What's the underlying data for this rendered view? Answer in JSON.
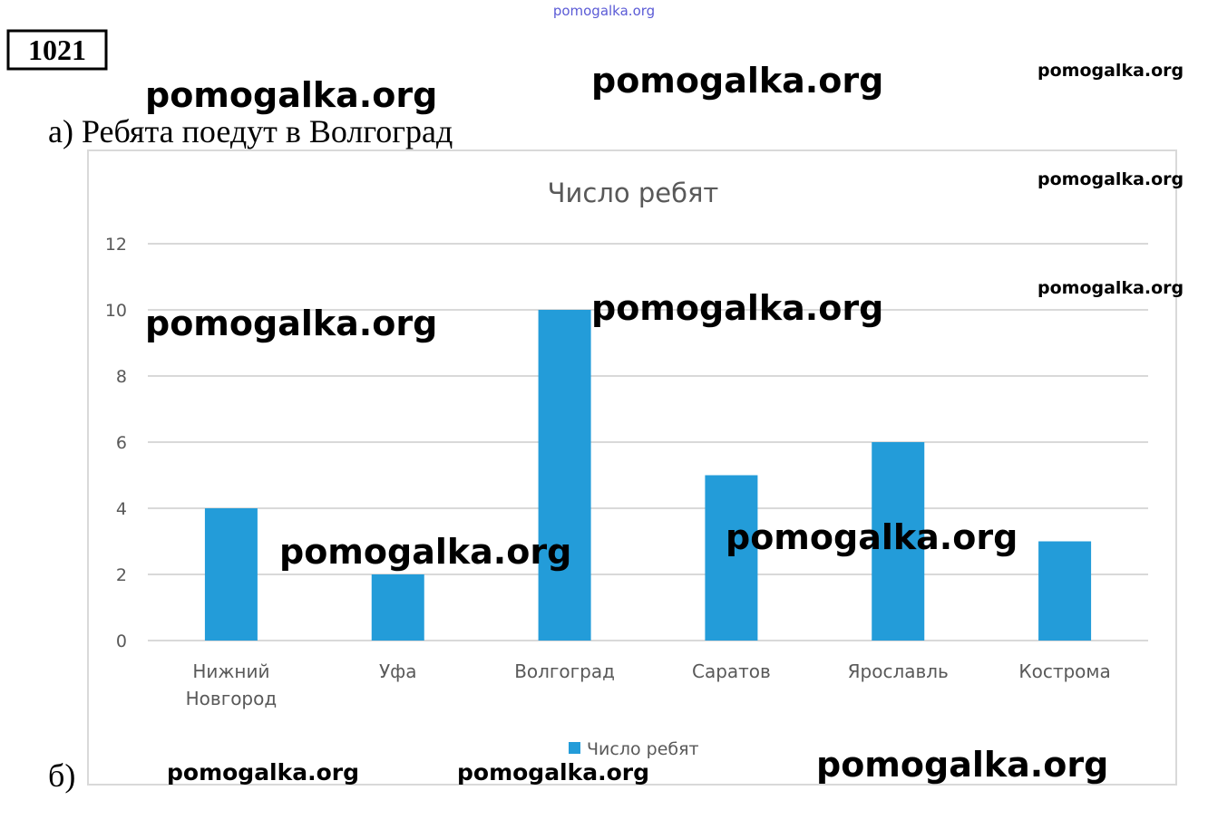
{
  "header": {
    "number": "1021"
  },
  "text": {
    "a": "а) Ребята поедут в Волгоград",
    "b": "б)"
  },
  "watermarks": [
    "pomogalka.org",
    "pomogalka.org",
    "pomogalka.org",
    "pomogalka.org",
    "pomogalka.org",
    "pomogalka.org",
    "pomogalka.org",
    "pomogalka.org",
    "pomogalka.org",
    "pomogalka.org",
    "pomogalka.org",
    "pomogalka.org",
    "pomogalka.org"
  ],
  "chart_data": {
    "type": "bar",
    "title": "Число ребят",
    "categories": [
      "Нижний Новгород",
      "Уфа",
      "Волгоград",
      "Саратов",
      "Ярославль",
      "Кострома"
    ],
    "series": [
      {
        "name": "Число ребят",
        "color": "#239cd9",
        "values": [
          4,
          2,
          10,
          5,
          6,
          3
        ]
      }
    ],
    "ylim": [
      0,
      12
    ],
    "yticks": [
      0,
      2,
      4,
      6,
      8,
      10,
      12
    ],
    "grid": true,
    "legend": "bottom"
  }
}
